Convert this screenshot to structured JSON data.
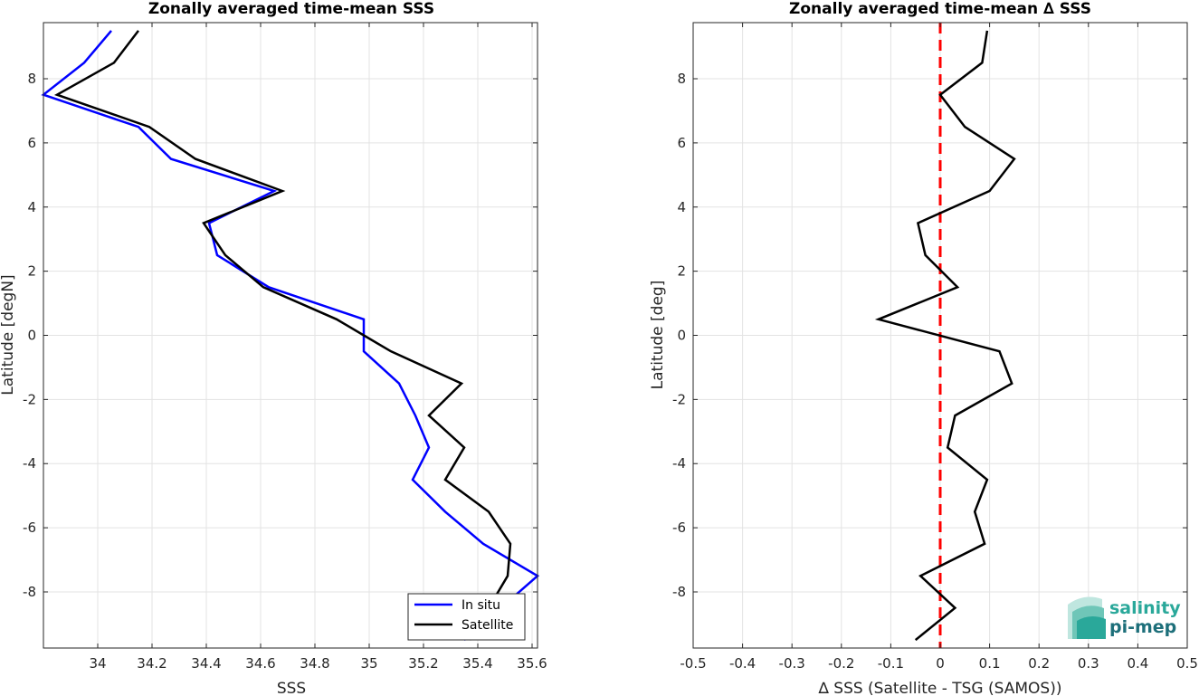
{
  "chart_data": [
    {
      "type": "line",
      "title": "Zonally averaged time-mean SSS",
      "xlabel": "SSS",
      "ylabel": "Latitude [degN]",
      "xlim": [
        33.8,
        35.62
      ],
      "ylim": [
        -9.75,
        9.75
      ],
      "xticks": [
        34,
        34.2,
        34.4,
        34.6,
        34.8,
        35,
        35.2,
        35.4,
        35.6
      ],
      "xtick_labels": [
        "34",
        "34.2",
        "34.4",
        "34.6",
        "34.8",
        "35",
        "35.2",
        "35.4",
        "35.6"
      ],
      "yticks": [
        -8,
        -6,
        -4,
        -2,
        0,
        2,
        4,
        6,
        8
      ],
      "ytick_labels": [
        "-8",
        "-6",
        "-4",
        "-2",
        "0",
        "2",
        "4",
        "6",
        "8"
      ],
      "grid": true,
      "legend": {
        "location": "bottom-right",
        "entries": [
          "In situ",
          "Satellite"
        ]
      },
      "series": [
        {
          "name": "In situ",
          "color": "#0000ff",
          "points": [
            {
              "x": 35.35,
              "y": -9.5
            },
            {
              "x": 35.62,
              "y": -7.5
            },
            {
              "x": 35.42,
              "y": -6.5
            },
            {
              "x": 35.28,
              "y": -5.5
            },
            {
              "x": 35.16,
              "y": -4.5
            },
            {
              "x": 35.22,
              "y": -3.5
            },
            {
              "x": 35.17,
              "y": -2.5
            },
            {
              "x": 35.11,
              "y": -1.5
            },
            {
              "x": 34.98,
              "y": -0.5
            },
            {
              "x": 34.98,
              "y": 0.5
            },
            {
              "x": 34.63,
              "y": 1.5
            },
            {
              "x": 34.44,
              "y": 2.5
            },
            {
              "x": 34.41,
              "y": 3.5
            },
            {
              "x": 34.65,
              "y": 4.5
            },
            {
              "x": 34.27,
              "y": 5.5
            },
            {
              "x": 34.15,
              "y": 6.5
            },
            {
              "x": 33.8,
              "y": 7.5
            },
            {
              "x": 33.95,
              "y": 8.5
            },
            {
              "x": 34.05,
              "y": 9.5
            }
          ]
        },
        {
          "name": "Satellite",
          "color": "#000000",
          "points": [
            {
              "x": 35.37,
              "y": -9.5
            },
            {
              "x": 35.51,
              "y": -7.5
            },
            {
              "x": 35.52,
              "y": -6.5
            },
            {
              "x": 35.44,
              "y": -5.5
            },
            {
              "x": 35.28,
              "y": -4.5
            },
            {
              "x": 35.35,
              "y": -3.5
            },
            {
              "x": 35.22,
              "y": -2.5
            },
            {
              "x": 35.34,
              "y": -1.5
            },
            {
              "x": 35.08,
              "y": -0.5
            },
            {
              "x": 34.98,
              "y": 0.0
            },
            {
              "x": 34.88,
              "y": 0.5
            },
            {
              "x": 34.61,
              "y": 1.5
            },
            {
              "x": 34.47,
              "y": 2.5
            },
            {
              "x": 34.39,
              "y": 3.5
            },
            {
              "x": 34.68,
              "y": 4.5
            },
            {
              "x": 34.36,
              "y": 5.5
            },
            {
              "x": 34.19,
              "y": 6.5
            },
            {
              "x": 33.85,
              "y": 7.5
            },
            {
              "x": 34.06,
              "y": 8.5
            },
            {
              "x": 34.15,
              "y": 9.5
            }
          ]
        }
      ]
    },
    {
      "type": "line",
      "title": "Zonally averaged time-mean ∆ SSS",
      "xlabel": "∆ SSS (Satellite - TSG (SAMOS))",
      "ylabel": "Latitude [deg]",
      "xlim": [
        -0.5,
        0.5
      ],
      "ylim": [
        -9.75,
        9.75
      ],
      "xticks": [
        -0.5,
        -0.4,
        -0.3,
        -0.2,
        -0.1,
        0,
        0.1,
        0.2,
        0.3,
        0.4,
        0.5
      ],
      "xtick_labels": [
        "-0.5",
        "-0.4",
        "-0.3",
        "-0.2",
        "-0.1",
        "0",
        "0.1",
        "0.2",
        "0.3",
        "0.4",
        "0.5"
      ],
      "yticks": [
        -8,
        -6,
        -4,
        -2,
        0,
        2,
        4,
        6,
        8
      ],
      "ytick_labels": [
        "-8",
        "-6",
        "-4",
        "-2",
        "0",
        "2",
        "4",
        "6",
        "8"
      ],
      "grid": true,
      "reference_line": {
        "x": 0,
        "color": "#ff0000",
        "style": "dashed"
      },
      "series": [
        {
          "color": "#000000",
          "points": [
            {
              "x": -0.05,
              "y": -9.5
            },
            {
              "x": 0.03,
              "y": -8.5
            },
            {
              "x": -0.04,
              "y": -7.5
            },
            {
              "x": 0.09,
              "y": -6.5
            },
            {
              "x": 0.07,
              "y": -5.5
            },
            {
              "x": 0.095,
              "y": -4.5
            },
            {
              "x": 0.015,
              "y": -3.5
            },
            {
              "x": 0.03,
              "y": -2.5
            },
            {
              "x": 0.145,
              "y": -1.5
            },
            {
              "x": 0.12,
              "y": -0.5
            },
            {
              "x": -0.125,
              "y": 0.5
            },
            {
              "x": 0.035,
              "y": 1.5
            },
            {
              "x": -0.03,
              "y": 2.5
            },
            {
              "x": -0.045,
              "y": 3.5
            },
            {
              "x": 0.1,
              "y": 4.5
            },
            {
              "x": 0.15,
              "y": 5.5
            },
            {
              "x": 0.05,
              "y": 6.5
            },
            {
              "x": 0.0,
              "y": 7.5
            },
            {
              "x": 0.085,
              "y": 8.5
            },
            {
              "x": 0.095,
              "y": 9.5
            }
          ]
        }
      ]
    }
  ],
  "logo": {
    "line1": "salinity",
    "line2": "pi-mep"
  }
}
